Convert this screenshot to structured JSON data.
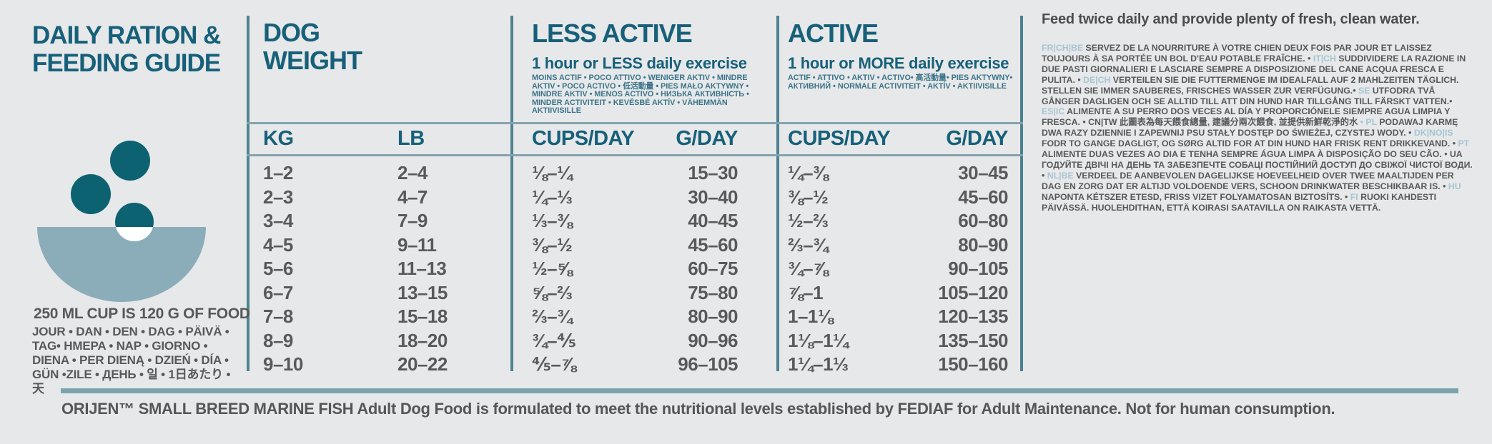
{
  "colors": {
    "teal_heading": "#17607a",
    "text_gray": "#58595b",
    "lang_code_blue": "#a7c5d3",
    "bowl_light_teal": "#8badb9",
    "kibble_dark_teal": "#0c6271",
    "rule_teal": "#7ba4af",
    "background": "#e6e8e9"
  },
  "title": {
    "line1": "DAILY RATION &",
    "line2": "FEEDING GUIDE"
  },
  "bowl_note": {
    "cup_info": "250 ML CUP IS 120 G OF FOOD",
    "day_translations": "JOUR • DAN • DEN • DAG • PÄIVÄ • TAG• HMEPA • NAP • GIORNO • DIENA • PER DIENĄ • DZIEŃ • DÍA • GÜN •ZILE • ДЕНЬ • 일 • 1日あたり • 天"
  },
  "table": {
    "dog_weight": {
      "line1": "DOG",
      "line2": "WEIGHT"
    },
    "less_active": {
      "title": "LESS ACTIVE",
      "subtitle": "1 hour or LESS daily exercise",
      "translations": "MOINS ACTIF • POCO ATTIVO • WENIGER AKTIV • MINDRE AKTIV •  POCO ACTIVO •  低活動量 •  PIES MAŁO AKTYWNY • MINDRE AKTIV •  MENOS ACTIVO • НИЗЬКА АКТИВНІСТЬ •  MINDER ACTIVITEIT • KEVÉSBÉ AKTÍV • VÄHEMMÄN AKTIIVISILLE"
    },
    "active": {
      "title": "ACTIVE",
      "subtitle": "1 hour or MORE daily exercise",
      "translations": "ACTIF • ATTIVO • AKTIV • ACTIVO• 高活動量• PIES AKTYWNY• АКТИВНИЙ • NORMALE ACTIVITEIT • AKTÍV • AKTIIVISILLE"
    },
    "headers": {
      "kg": "KG",
      "lb": "LB",
      "cups": "CUPS/DAY",
      "grams": "G/DAY"
    },
    "rows": [
      {
        "kg": "1–2",
        "lb": "2–4",
        "la_cups": "⅛–¼",
        "la_g": "15–30",
        "a_cups": "¼–⅜",
        "a_g": "30–45"
      },
      {
        "kg": "2–3",
        "lb": "4–7",
        "la_cups": "¼–⅓",
        "la_g": "30–40",
        "a_cups": "⅜–½",
        "a_g": "45–60"
      },
      {
        "kg": "3–4",
        "lb": "7–9",
        "la_cups": "⅓–⅜",
        "la_g": "40–45",
        "a_cups": "½–⅔",
        "a_g": "60–80"
      },
      {
        "kg": "4–5",
        "lb": "9–11",
        "la_cups": "⅜–½",
        "la_g": "45–60",
        "a_cups": "⅔–¾",
        "a_g": "80–90"
      },
      {
        "kg": "5–6",
        "lb": "11–13",
        "la_cups": "½–⅝",
        "la_g": "60–75",
        "a_cups": "¾–⅞",
        "a_g": "90–105"
      },
      {
        "kg": "6–7",
        "lb": "13–15",
        "la_cups": "⅝–⅔",
        "la_g": "75–80",
        "a_cups": "⅞–1",
        "a_g": "105–120"
      },
      {
        "kg": "7–8",
        "lb": "15–18",
        "la_cups": "⅔–¾",
        "la_g": "80–90",
        "a_cups": "1–1⅛",
        "a_g": "120–135"
      },
      {
        "kg": "8–9",
        "lb": "18–20",
        "la_cups": "¾–⅘",
        "la_g": "90–96",
        "a_cups": "1⅛–1¼",
        "a_g": "135–150"
      },
      {
        "kg": "9–10",
        "lb": "20–22",
        "la_cups": "⅘–⅞",
        "la_g": "96–105",
        "a_cups": "1¼–1⅓",
        "a_g": "150–160"
      }
    ]
  },
  "right_panel": {
    "headline": "Feed twice daily and provide plenty of fresh, clean water.",
    "segments": [
      {
        "code": "FR|CH|BE",
        "dark": false,
        "text": "SERVEZ DE LA NOURRITURE À VOTRE CHIEN DEUX FOIS PAR JOUR ET LAISSEZ TOUJOURS À SA PORTÉE UN BOL D'EAU POTABLE FRAÎCHE. •"
      },
      {
        "code": "IT|CH",
        "dark": false,
        "text": "SUDDIVIDERE LA RAZIONE IN DUE PASTI GIORNALIERI E LASCIARE SEMPRE A DISPOSIZIONE DEL CANE ACQUA FRESCA E PULITA. •"
      },
      {
        "code": "DE|CH",
        "dark": false,
        "text": "VERTEILEN SIE DIE FUTTERMENGE IM IDEALFALL AUF 2 MAHLZEITEN TÄGLICH. STELLEN SIE IMMER SAUBERES, FRISCHES WASSER ZUR VERFÜGUNG.•"
      },
      {
        "code": "SE",
        "dark": false,
        "text": "UTFODRA TVÅ GÅNGER DAGLIGEN OCH SE ALLTID TILL ATT DIN HUND HAR TILLGÅNG TILL FÄRSKT VATTEN.•"
      },
      {
        "code": "ES|IC",
        "dark": false,
        "text": "ALIMENTE A SU PERRO DOS VECES AL DÍA Y PROPORCIÓNELE SIEMPRE AGUA LIMPIA Y FRESCA. •"
      },
      {
        "code": "CN|TW",
        "dark": true,
        "text": "此圖表為每天餵食總量, 建議分兩次餵食, 並提供新鮮乾淨的水"
      },
      {
        "code": "• PL",
        "dark": false,
        "text": "PODAWAJ KARMĘ DWA RAZY DZIENNIE I ZAPEWNIJ PSU STAŁY DOSTĘP DO ŚWIEŻEJ, CZYSTEJ WODY. •"
      },
      {
        "code": "DK|NO|IS",
        "dark": false,
        "text": "FODR TO GANGE DAGLIGT, OG SØRG ALTID FOR AT DIN HUND HAR FRISK RENT DRIKKEVAND. •"
      },
      {
        "code": "PT",
        "dark": false,
        "text": "ALIMENTE DUAS VEZES AO DIA E TENHA SEMPRE ÁGUA LIMPA À DISPOSIÇÃO DO SEU CÃO. •"
      },
      {
        "code": "UA",
        "dark": true,
        "text": "ГОДУЙТЕ ДВІЧІ НА ДЕНЬ ТА ЗАБЕЗПЕЧТЕ СОБАЦІ ПОСТІЙНИЙ ДОСТУП ДО СВІЖОЇ ЧИСТОЇ ВОДИ.  •"
      },
      {
        "code": "NL|BE",
        "dark": false,
        "text": "VERDEEL DE AANBEVOLEN DAGELIJKSE HOEVEELHEID OVER TWEE MAALTIJDEN PER DAG EN ZORG DAT ER ALTIJD VOLDOENDE VERS, SCHOON DRINKWATER BESCHIKBAAR IS. •"
      },
      {
        "code": "HU",
        "dark": false,
        "text": "NAPONTA KÉTSZER ETESD, FRISS VIZET FOLYAMATOSAN BIZTOSÍTS. •"
      },
      {
        "code": "FI",
        "dark": false,
        "text": "RUOKI KAHDESTI PÄIVÄSSÄ. HUOLEHDITHAN, ETTÄ KOIRASI SAATAVILLA ON RAIKASTA VETTÄ."
      }
    ]
  },
  "footer": {
    "text": "ORIJEN™ SMALL BREED MARINE FISH Adult Dog Food is formulated to meet the nutritional levels established by FEDIAF for Adult Maintenance. Not for human consumption."
  }
}
